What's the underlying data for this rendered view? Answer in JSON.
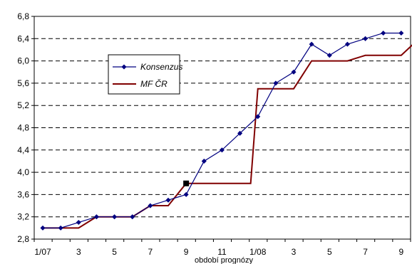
{
  "chart_data": {
    "type": "line",
    "title": "",
    "xlabel": "období prognózy",
    "ylabel": "",
    "ylim": [
      2.8,
      6.8
    ],
    "yticks": [
      "2,8",
      "3,2",
      "3,6",
      "4,0",
      "4,4",
      "4,8",
      "5,2",
      "5,6",
      "6,0",
      "6,4",
      "6,8"
    ],
    "xtick_labels": [
      "1/07",
      "3",
      "5",
      "7",
      "9",
      "11",
      "1/08",
      "3",
      "5",
      "7",
      "9"
    ],
    "grid": "horizontal-dashed",
    "legend": "left-middle",
    "series": [
      {
        "name": "Konsenzus",
        "color": "#000080",
        "marker": "diamond",
        "values": [
          3.0,
          3.0,
          3.1,
          3.2,
          3.2,
          3.2,
          3.4,
          3.5,
          3.6,
          4.2,
          4.4,
          4.7,
          5.0,
          5.6,
          5.8,
          6.3,
          6.1,
          6.3,
          6.4,
          6.5,
          6.5
        ]
      },
      {
        "name": "MF ČR",
        "color": "#800000",
        "marker": "none",
        "values": [
          3.0,
          3.0,
          3.0,
          3.2,
          3.2,
          3.2,
          3.4,
          3.4,
          3.8,
          3.8,
          3.8,
          3.8,
          5.5,
          5.5,
          5.5,
          6.0,
          6.0,
          6.0,
          6.1,
          6.1,
          6.1,
          6.4
        ]
      }
    ],
    "annotations": [
      {
        "type": "square-marker",
        "x_index": 8,
        "y": 3.8,
        "color": "#000000"
      }
    ]
  }
}
